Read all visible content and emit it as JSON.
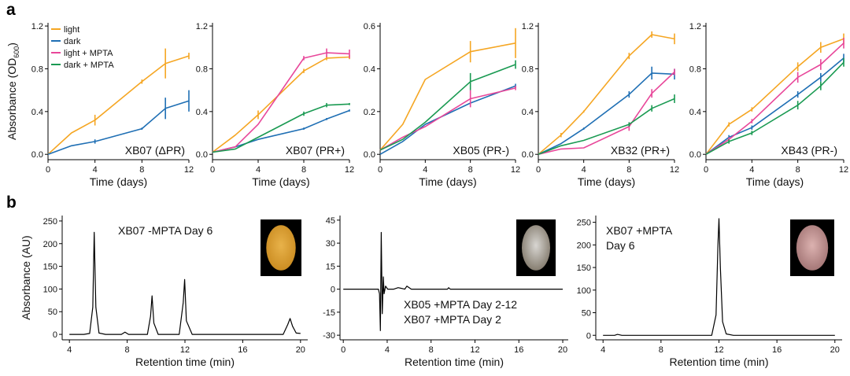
{
  "panel_labels": {
    "a": "a",
    "b": "b"
  },
  "colors": {
    "light": "#f5a623",
    "dark": "#1f6fb4",
    "light_mpta": "#e8479a",
    "dark_mpta": "#1a9a52",
    "trace": "#000000"
  },
  "chart_data": [
    {
      "type": "line",
      "panel": "a",
      "title": "XB07 (ΔPR)",
      "xlabel": "Time (days)",
      "ylabel": "Absorbance (OD600)",
      "ylabel_main": "Absorbance (OD",
      "ylabel_sub": "600",
      "ylabel_close": ")",
      "xlim": [
        0,
        12
      ],
      "ylim": [
        -0.05,
        1.23
      ],
      "xticks": [
        0,
        4,
        8,
        12
      ],
      "yticks": [
        0.0,
        0.4,
        0.8,
        1.2
      ],
      "ytick_labels": [
        "0.0",
        "0.4",
        "0.8",
        "1.2"
      ],
      "legend": {
        "placement": "top-left",
        "entries": [
          "light",
          "dark",
          "light + MPTA",
          "dark + MPTA"
        ]
      },
      "series": [
        {
          "name": "light",
          "color": "#f5a623",
          "x": [
            0,
            2,
            4,
            8,
            10,
            12
          ],
          "y": [
            0.0,
            0.2,
            0.32,
            0.68,
            0.85,
            0.92
          ],
          "err": [
            0,
            0,
            0.05,
            0.02,
            0.14,
            0.03
          ]
        },
        {
          "name": "dark",
          "color": "#1f6fb4",
          "x": [
            0,
            2,
            4,
            8,
            10,
            12
          ],
          "y": [
            0.0,
            0.08,
            0.12,
            0.24,
            0.43,
            0.5
          ],
          "err": [
            0,
            0,
            0.02,
            0.01,
            0.1,
            0.1
          ]
        }
      ]
    },
    {
      "type": "line",
      "panel": "a",
      "title": "XB07 (PR+)",
      "xlabel": "Time (days)",
      "xlim": [
        0,
        12
      ],
      "ylim": [
        -0.05,
        1.23
      ],
      "xticks": [
        0,
        4,
        8,
        12
      ],
      "yticks": [
        0.0,
        0.4,
        0.8,
        1.2
      ],
      "ytick_labels": [
        "0.0",
        "0.4",
        "0.8",
        "1.2"
      ],
      "series": [
        {
          "name": "light",
          "color": "#f5a623",
          "x": [
            0,
            2,
            4,
            8,
            10,
            12
          ],
          "y": [
            0.02,
            0.18,
            0.37,
            0.78,
            0.9,
            0.91
          ],
          "err": [
            0,
            0,
            0.04,
            0.02,
            0.02,
            0.02
          ]
        },
        {
          "name": "dark",
          "color": "#1f6fb4",
          "x": [
            0,
            2,
            4,
            8,
            10,
            12
          ],
          "y": [
            0.02,
            0.07,
            0.14,
            0.24,
            0.33,
            0.41
          ],
          "err": [
            0,
            0,
            0,
            0.01,
            0.01,
            0.01
          ]
        },
        {
          "name": "light + MPTA",
          "color": "#e8479a",
          "x": [
            0,
            2,
            4,
            8,
            10,
            12
          ],
          "y": [
            0.02,
            0.07,
            0.28,
            0.9,
            0.95,
            0.94
          ],
          "err": [
            0,
            0,
            0,
            0.02,
            0.04,
            0.04
          ]
        },
        {
          "name": "dark + MPTA",
          "color": "#1a9a52",
          "x": [
            0,
            2,
            4,
            8,
            10,
            12
          ],
          "y": [
            0.02,
            0.05,
            0.16,
            0.38,
            0.46,
            0.47
          ],
          "err": [
            0,
            0,
            0,
            0.02,
            0.02,
            0.01
          ]
        }
      ]
    },
    {
      "type": "line",
      "panel": "a",
      "title": "XB05 (PR-)",
      "xlabel": "Time (days)",
      "xlim": [
        0,
        12
      ],
      "ylim": [
        -0.025,
        0.615
      ],
      "xticks": [
        0,
        4,
        8,
        12
      ],
      "yticks": [
        0.0,
        0.2,
        0.4,
        0.6
      ],
      "ytick_labels": [
        "0.0",
        "0.2",
        "0.4",
        "0.6"
      ],
      "series": [
        {
          "name": "light",
          "color": "#f5a623",
          "x": [
            0,
            2,
            4,
            8,
            12
          ],
          "y": [
            0.02,
            0.14,
            0.35,
            0.48,
            0.52
          ],
          "err": [
            0,
            0,
            0,
            0.05,
            0.07
          ]
        },
        {
          "name": "dark",
          "color": "#1f6fb4",
          "x": [
            0,
            2,
            4,
            8,
            12
          ],
          "y": [
            0.0,
            0.06,
            0.14,
            0.24,
            0.32
          ],
          "err": [
            0,
            0,
            0,
            0,
            0.01
          ]
        },
        {
          "name": "light + MPTA",
          "color": "#e8479a",
          "x": [
            0,
            2,
            4,
            8,
            12
          ],
          "y": [
            0.02,
            0.08,
            0.13,
            0.26,
            0.31
          ],
          "err": [
            0,
            0,
            0,
            0.04,
            0.01
          ]
        },
        {
          "name": "dark + MPTA",
          "color": "#1a9a52",
          "x": [
            0,
            2,
            4,
            8,
            12
          ],
          "y": [
            0.02,
            0.07,
            0.15,
            0.34,
            0.42
          ],
          "err": [
            0,
            0,
            0,
            0.04,
            0.02
          ]
        }
      ]
    },
    {
      "type": "line",
      "panel": "a",
      "title": "XB32 (PR+)",
      "xlabel": "Time (days)",
      "xlim": [
        0,
        12
      ],
      "ylim": [
        -0.05,
        1.23
      ],
      "xticks": [
        0,
        4,
        8,
        12
      ],
      "yticks": [
        0.0,
        0.4,
        0.8,
        1.2
      ],
      "ytick_labels": [
        "0.0",
        "0.4",
        "0.8",
        "1.2"
      ],
      "series": [
        {
          "name": "light",
          "color": "#f5a623",
          "x": [
            0,
            2,
            4,
            8,
            10,
            12
          ],
          "y": [
            0.0,
            0.18,
            0.4,
            0.92,
            1.12,
            1.08
          ],
          "err": [
            0,
            0.02,
            0.01,
            0.03,
            0.03,
            0.05
          ]
        },
        {
          "name": "dark",
          "color": "#1f6fb4",
          "x": [
            0,
            2,
            4,
            8,
            10,
            12
          ],
          "y": [
            0.0,
            0.1,
            0.24,
            0.56,
            0.76,
            0.75
          ],
          "err": [
            0,
            0,
            0.01,
            0.03,
            0.06,
            0.05
          ]
        },
        {
          "name": "light + MPTA",
          "color": "#e8479a",
          "x": [
            0,
            2,
            4,
            8,
            10,
            12
          ],
          "y": [
            0.0,
            0.05,
            0.06,
            0.26,
            0.57,
            0.77
          ],
          "err": [
            0,
            0,
            0,
            0.04,
            0.04,
            0.03
          ]
        },
        {
          "name": "dark + MPTA",
          "color": "#1a9a52",
          "x": [
            0,
            2,
            4,
            8,
            10,
            12
          ],
          "y": [
            0.0,
            0.08,
            0.13,
            0.28,
            0.43,
            0.52
          ],
          "err": [
            0,
            0,
            0,
            0.02,
            0.03,
            0.04
          ]
        }
      ]
    },
    {
      "type": "line",
      "panel": "a",
      "title": "XB43 (PR-)",
      "xlabel": "Time (days)",
      "xlim": [
        0,
        12
      ],
      "ylim": [
        -0.05,
        1.23
      ],
      "xticks": [
        0,
        4,
        8,
        12
      ],
      "yticks": [
        0.0,
        0.4,
        0.8,
        1.2
      ],
      "ytick_labels": [
        "0.0",
        "0.4",
        "0.8",
        "1.2"
      ],
      "series": [
        {
          "name": "light",
          "color": "#f5a623",
          "x": [
            0,
            2,
            4,
            8,
            10,
            12
          ],
          "y": [
            0.0,
            0.28,
            0.42,
            0.82,
            1.0,
            1.08
          ],
          "err": [
            0,
            0.02,
            0.02,
            0.04,
            0.05,
            0.05
          ]
        },
        {
          "name": "dark",
          "color": "#1f6fb4",
          "x": [
            0,
            2,
            4,
            8,
            10,
            12
          ],
          "y": [
            0.0,
            0.16,
            0.25,
            0.56,
            0.72,
            0.9
          ],
          "err": [
            0,
            0.02,
            0.02,
            0.03,
            0.04,
            0.04
          ]
        },
        {
          "name": "light + MPTA",
          "color": "#e8479a",
          "x": [
            0,
            2,
            4,
            8,
            10,
            12
          ],
          "y": [
            0.0,
            0.14,
            0.31,
            0.72,
            0.84,
            1.04
          ],
          "err": [
            0,
            0.02,
            0.02,
            0.05,
            0.05,
            0.05
          ]
        },
        {
          "name": "dark + MPTA",
          "color": "#1a9a52",
          "x": [
            0,
            2,
            4,
            8,
            10,
            12
          ],
          "y": [
            0.0,
            0.12,
            0.2,
            0.46,
            0.64,
            0.86
          ],
          "err": [
            0,
            0.02,
            0.02,
            0.04,
            0.04,
            0.04
          ]
        }
      ]
    },
    {
      "type": "line",
      "panel": "b",
      "title": "XB07 -MPTA Day 6",
      "xlabel": "Retention time (min)",
      "ylabel": "Absorbance (AU)",
      "xlim": [
        3.5,
        20.5
      ],
      "ylim": [
        -12,
        262
      ],
      "xticks": [
        4,
        8,
        12,
        16,
        20
      ],
      "yticks": [
        0,
        50,
        100,
        150,
        200,
        250
      ],
      "series": [
        {
          "name": "",
          "color": "#000000",
          "x": [
            4.0,
            5.0,
            5.4,
            5.62,
            5.72,
            5.83,
            6.05,
            6.5,
            7.6,
            7.85,
            8.1,
            9.4,
            9.62,
            9.72,
            9.85,
            10.15,
            11.6,
            11.88,
            11.98,
            12.1,
            12.5,
            18.8,
            19.12,
            19.28,
            19.45,
            19.7,
            20.0
          ],
          "y": [
            0,
            0,
            2,
            60,
            225,
            60,
            3,
            0,
            0,
            5,
            0,
            0,
            40,
            85,
            25,
            0,
            0,
            70,
            121,
            30,
            0,
            0,
            22,
            35,
            18,
            3,
            2
          ]
        }
      ]
    },
    {
      "type": "line",
      "panel": "b",
      "title": "XB05 +MPTA Day 2-12",
      "title2": "XB07 +MPTA Day 2",
      "xlabel": "Retention time (min)",
      "xlim": [
        -0.3,
        20.5
      ],
      "ylim": [
        -33,
        48
      ],
      "xticks": [
        0,
        4,
        8,
        12,
        16,
        20
      ],
      "yticks": [
        -30,
        -15,
        0,
        15,
        30,
        45
      ],
      "series": [
        {
          "name": "",
          "color": "#000000",
          "x": [
            0.0,
            3.0,
            3.2,
            3.3,
            3.38,
            3.46,
            3.55,
            3.65,
            3.72,
            3.85,
            4.05,
            4.6,
            5.0,
            5.6,
            5.8,
            6.2,
            9.5,
            9.6,
            9.75,
            12.0,
            18.0,
            20.0
          ],
          "y": [
            0,
            0,
            0,
            -3,
            -27,
            37,
            -16,
            8,
            -3,
            2,
            0,
            0,
            1,
            0,
            2,
            0,
            0,
            1,
            0,
            0,
            0,
            0
          ]
        }
      ]
    },
    {
      "type": "line",
      "panel": "b",
      "title": "XB07 +MPTA",
      "title2": "Day 6",
      "xlabel": "Retention time (min)",
      "xlim": [
        3.5,
        20.5
      ],
      "ylim": [
        -10,
        265
      ],
      "xticks": [
        4,
        8,
        12,
        16,
        20
      ],
      "yticks": [
        0,
        50,
        100,
        150,
        200,
        250
      ],
      "series": [
        {
          "name": "",
          "color": "#000000",
          "x": [
            4.0,
            4.8,
            5.0,
            5.3,
            11.5,
            11.8,
            11.93,
            12.0,
            12.1,
            12.25,
            12.5,
            13.0,
            18.0,
            20.0
          ],
          "y": [
            0,
            0,
            2,
            0,
            0,
            45,
            200,
            258,
            150,
            30,
            3,
            0,
            0,
            0
          ]
        }
      ]
    }
  ]
}
